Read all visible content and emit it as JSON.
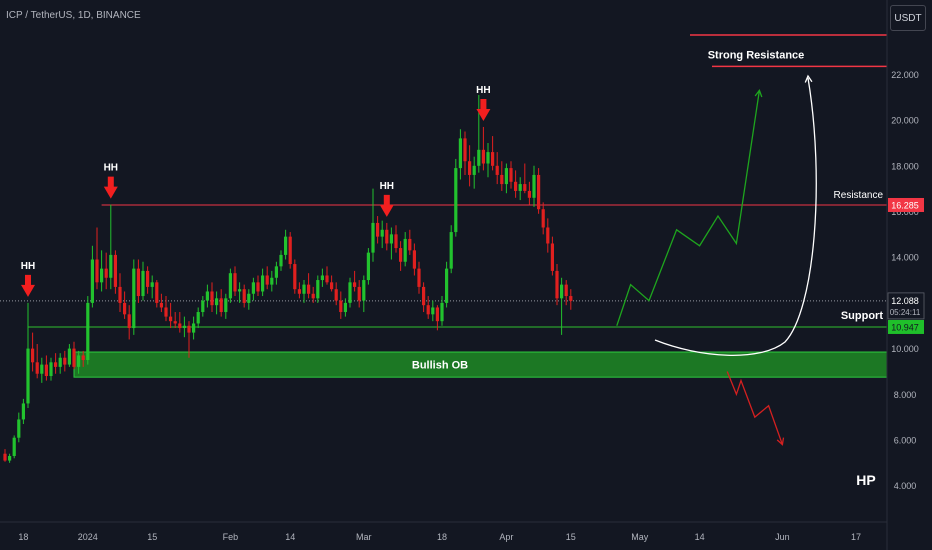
{
  "header": {
    "symbol": "ICP / TetherUS, 1D, BINANCE",
    "currency": "USDT"
  },
  "colors": {
    "background": "#131722",
    "up": "#22c22e",
    "down": "#e0201f",
    "axis_text": "#b2b5be",
    "resistance": "#f23645",
    "support": "#2fbf2f",
    "bullish_ob_fill": "#1e8a24",
    "projection_up": "#1ea51e",
    "projection_down": "#d42020",
    "hh_arrow": "#f21f1f",
    "white": "#ffffff"
  },
  "chart_data": {
    "type": "candlestick",
    "price_axis": {
      "ticks": [
        4,
        6,
        8,
        10,
        12,
        14,
        16,
        18,
        20,
        22
      ],
      "tick_labels": [
        "4.000",
        "6.000",
        "8.000",
        "10.000",
        "12.000",
        "14.000",
        "16.000",
        "18.000",
        "20.000",
        "22.000"
      ]
    },
    "time_axis": {
      "labels": [
        {
          "label": "18",
          "index": 4
        },
        {
          "label": "2024",
          "index": 18
        },
        {
          "label": "15",
          "index": 32
        },
        {
          "label": "Feb",
          "index": 49
        },
        {
          "label": "14",
          "index": 62
        },
        {
          "label": "Mar",
          "index": 78
        },
        {
          "label": "18",
          "index": 95
        },
        {
          "label": "Apr",
          "index": 109
        },
        {
          "label": "15",
          "index": 123
        },
        {
          "label": "May",
          "index": 138
        },
        {
          "label": "14",
          "index": 151
        },
        {
          "label": "Jun",
          "index": 169
        },
        {
          "label": "17",
          "index": 185
        }
      ]
    },
    "last_price": {
      "value": 12.088,
      "label": "12.088",
      "countdown": "05:24:11"
    },
    "levels": [
      {
        "name": "Resistance",
        "value": 16.285,
        "label": "16.285"
      },
      {
        "name": "Support",
        "value": 10.947,
        "label": "10.947"
      },
      {
        "name": "Strong Resistance",
        "value": 22.35
      }
    ],
    "bullish_ob": {
      "label": "Bullish OB",
      "top": 9.85,
      "bottom": 8.75
    },
    "hh_markers": [
      {
        "label": "HH",
        "index": 5
      },
      {
        "label": "HH",
        "index": 23
      },
      {
        "label": "HH",
        "index": 83
      },
      {
        "label": "HH",
        "index": 104
      }
    ],
    "projection_up": [
      [
        133,
        11.0
      ],
      [
        136,
        12.8
      ],
      [
        140,
        12.1
      ],
      [
        146,
        15.2
      ],
      [
        151,
        14.5
      ],
      [
        155,
        15.8
      ],
      [
        159,
        14.6
      ],
      [
        164,
        21.3
      ]
    ],
    "projection_down": [
      [
        157,
        9.0
      ],
      [
        159,
        8.0
      ],
      [
        160,
        8.6
      ],
      [
        163,
        7.0
      ],
      [
        166,
        7.5
      ],
      [
        169,
        5.8
      ]
    ],
    "candles": [
      [
        5.4,
        5.6,
        5.05,
        5.1
      ],
      [
        5.1,
        5.4,
        5.0,
        5.3
      ],
      [
        5.3,
        6.2,
        5.2,
        6.1
      ],
      [
        6.1,
        7.2,
        5.9,
        6.9
      ],
      [
        6.9,
        7.8,
        6.7,
        7.6
      ],
      [
        7.6,
        12.0,
        7.4,
        10.0
      ],
      [
        10.0,
        10.7,
        9.0,
        9.4
      ],
      [
        9.4,
        10.2,
        8.7,
        8.9
      ],
      [
        8.9,
        9.6,
        8.5,
        9.3
      ],
      [
        9.3,
        9.7,
        8.6,
        8.8
      ],
      [
        8.8,
        9.6,
        8.6,
        9.4
      ],
      [
        9.4,
        9.8,
        8.9,
        9.2
      ],
      [
        9.2,
        9.8,
        8.9,
        9.6
      ],
      [
        9.6,
        9.9,
        9.0,
        9.3
      ],
      [
        9.3,
        10.2,
        9.2,
        10.0
      ],
      [
        10.0,
        10.3,
        9.1,
        9.2
      ],
      [
        9.2,
        9.9,
        8.9,
        9.7
      ],
      [
        9.7,
        9.9,
        9.2,
        9.5
      ],
      [
        9.5,
        12.3,
        9.3,
        12.0
      ],
      [
        12.0,
        14.5,
        11.8,
        13.9
      ],
      [
        13.9,
        15.3,
        12.6,
        12.9
      ],
      [
        12.9,
        14.3,
        12.5,
        13.5
      ],
      [
        13.5,
        14.2,
        12.6,
        13.1
      ],
      [
        13.1,
        16.3,
        12.6,
        14.1
      ],
      [
        14.1,
        14.3,
        12.4,
        12.7
      ],
      [
        12.7,
        13.3,
        11.6,
        12.0
      ],
      [
        12.0,
        12.5,
        11.3,
        11.5
      ],
      [
        11.5,
        11.9,
        10.4,
        10.9
      ],
      [
        10.9,
        13.9,
        10.6,
        13.5
      ],
      [
        13.5,
        13.9,
        12.0,
        12.3
      ],
      [
        12.3,
        13.8,
        12.1,
        13.4
      ],
      [
        13.4,
        13.6,
        12.4,
        12.7
      ],
      [
        12.7,
        13.2,
        12.2,
        12.9
      ],
      [
        12.9,
        13.0,
        11.8,
        12.0
      ],
      [
        12.0,
        12.4,
        11.6,
        11.8
      ],
      [
        11.8,
        12.3,
        11.2,
        11.4
      ],
      [
        11.4,
        12.0,
        10.9,
        11.2
      ],
      [
        11.2,
        11.6,
        10.9,
        11.1
      ],
      [
        11.1,
        11.6,
        10.7,
        10.9
      ],
      [
        10.9,
        11.4,
        10.5,
        11.0
      ],
      [
        11.0,
        11.2,
        9.6,
        10.7
      ],
      [
        10.7,
        11.4,
        10.4,
        11.1
      ],
      [
        11.1,
        11.8,
        10.9,
        11.6
      ],
      [
        11.6,
        12.3,
        11.4,
        12.1
      ],
      [
        12.1,
        12.8,
        11.8,
        12.5
      ],
      [
        12.5,
        12.9,
        11.6,
        11.9
      ],
      [
        11.9,
        12.5,
        11.5,
        12.2
      ],
      [
        12.2,
        12.6,
        11.4,
        11.6
      ],
      [
        11.6,
        12.4,
        11.3,
        12.2
      ],
      [
        12.2,
        13.5,
        12.0,
        13.3
      ],
      [
        13.3,
        13.6,
        12.3,
        12.5
      ],
      [
        12.5,
        12.9,
        12.0,
        12.6
      ],
      [
        12.6,
        12.8,
        11.8,
        12.0
      ],
      [
        12.0,
        12.6,
        11.7,
        12.4
      ],
      [
        12.4,
        13.1,
        12.1,
        12.9
      ],
      [
        12.9,
        13.2,
        12.3,
        12.5
      ],
      [
        12.5,
        13.5,
        12.3,
        13.2
      ],
      [
        13.2,
        13.6,
        12.6,
        12.8
      ],
      [
        12.8,
        13.4,
        12.5,
        13.1
      ],
      [
        13.1,
        13.8,
        12.8,
        13.6
      ],
      [
        13.6,
        14.3,
        13.4,
        14.1
      ],
      [
        14.1,
        15.2,
        13.9,
        14.9
      ],
      [
        14.9,
        15.1,
        13.5,
        13.7
      ],
      [
        13.7,
        13.9,
        12.4,
        12.6
      ],
      [
        12.6,
        12.9,
        12.2,
        12.4
      ],
      [
        12.4,
        13.0,
        12.0,
        12.8
      ],
      [
        12.8,
        13.3,
        12.2,
        12.4
      ],
      [
        12.4,
        12.7,
        12.0,
        12.2
      ],
      [
        12.2,
        13.2,
        12.0,
        13.0
      ],
      [
        13.0,
        13.5,
        12.7,
        13.2
      ],
      [
        13.2,
        13.6,
        12.8,
        12.9
      ],
      [
        12.9,
        13.2,
        12.5,
        12.6
      ],
      [
        12.6,
        12.9,
        11.9,
        12.1
      ],
      [
        12.1,
        12.5,
        11.3,
        11.6
      ],
      [
        11.6,
        12.2,
        11.4,
        12.0
      ],
      [
        12.0,
        13.1,
        11.8,
        12.9
      ],
      [
        12.9,
        13.4,
        12.5,
        12.7
      ],
      [
        12.7,
        13.0,
        11.8,
        12.1
      ],
      [
        12.1,
        13.2,
        11.6,
        13.0
      ],
      [
        13.0,
        14.4,
        12.8,
        14.2
      ],
      [
        14.2,
        17.0,
        13.8,
        15.5
      ],
      [
        15.5,
        15.8,
        14.6,
        14.9
      ],
      [
        14.9,
        15.6,
        14.4,
        15.2
      ],
      [
        15.2,
        15.5,
        14.3,
        14.6
      ],
      [
        14.6,
        15.3,
        13.9,
        15.0
      ],
      [
        15.0,
        15.4,
        14.2,
        14.4
      ],
      [
        14.4,
        14.7,
        13.4,
        13.8
      ],
      [
        13.8,
        15.1,
        13.6,
        14.8
      ],
      [
        14.8,
        15.2,
        14.1,
        14.3
      ],
      [
        14.3,
        14.6,
        13.2,
        13.5
      ],
      [
        13.5,
        13.8,
        12.4,
        12.7
      ],
      [
        12.7,
        12.9,
        11.6,
        11.9
      ],
      [
        11.9,
        12.3,
        11.3,
        11.5
      ],
      [
        11.5,
        12.1,
        11.2,
        11.8
      ],
      [
        11.8,
        11.9,
        10.8,
        11.2
      ],
      [
        11.2,
        12.3,
        11.0,
        12.0
      ],
      [
        12.0,
        13.8,
        11.8,
        13.5
      ],
      [
        13.5,
        15.4,
        13.3,
        15.1
      ],
      [
        15.1,
        18.3,
        14.9,
        17.9
      ],
      [
        17.9,
        19.6,
        17.4,
        19.2
      ],
      [
        19.2,
        19.5,
        17.6,
        18.2
      ],
      [
        18.2,
        18.9,
        17.1,
        17.6
      ],
      [
        17.6,
        18.4,
        17.0,
        18.0
      ],
      [
        18.0,
        21.1,
        17.7,
        18.7
      ],
      [
        18.7,
        19.7,
        17.8,
        18.1
      ],
      [
        18.1,
        19.0,
        17.5,
        18.6
      ],
      [
        18.6,
        19.3,
        17.8,
        18.0
      ],
      [
        18.0,
        18.6,
        17.2,
        17.6
      ],
      [
        17.6,
        18.2,
        16.9,
        17.2
      ],
      [
        17.2,
        18.1,
        16.8,
        17.9
      ],
      [
        17.9,
        18.2,
        17.0,
        17.3
      ],
      [
        17.3,
        17.8,
        16.6,
        16.9
      ],
      [
        16.9,
        17.5,
        16.5,
        17.2
      ],
      [
        17.2,
        18.1,
        16.8,
        16.9
      ],
      [
        16.9,
        17.3,
        16.3,
        16.6
      ],
      [
        16.6,
        18.0,
        16.2,
        17.6
      ],
      [
        17.6,
        17.9,
        15.9,
        16.1
      ],
      [
        16.1,
        16.4,
        15.0,
        15.3
      ],
      [
        15.3,
        15.7,
        14.2,
        14.6
      ],
      [
        14.6,
        14.9,
        13.2,
        13.4
      ],
      [
        13.4,
        13.7,
        11.9,
        12.2
      ],
      [
        12.2,
        13.1,
        10.6,
        12.8
      ],
      [
        12.8,
        13.0,
        11.9,
        12.3
      ],
      [
        12.3,
        12.6,
        11.7,
        12.088
      ]
    ]
  },
  "labels": {
    "strong_resistance": "Strong Resistance",
    "resistance": "Resistance",
    "support": "Support",
    "hp": "HP"
  }
}
